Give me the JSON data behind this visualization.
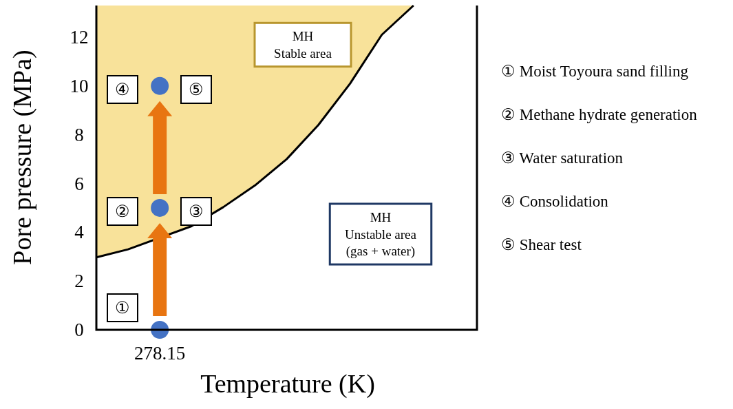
{
  "chart_data": {
    "type": "area",
    "xlabel": "Temperature (K)",
    "ylabel": "Pore pressure (MPa)",
    "categories": [
      null,
      null,
      "278.15",
      null,
      null,
      null,
      null,
      null,
      null,
      null,
      null,
      null,
      null
    ],
    "ylim": [
      0,
      13.3
    ],
    "yticks": [
      0,
      2,
      4,
      6,
      8,
      10,
      12
    ],
    "grid": false,
    "legend": false,
    "series": [
      {
        "type": "line",
        "color": "#000000",
        "values": [
          2.97,
          3.3,
          null,
          4.25,
          5.03,
          5.92,
          7.0,
          8.4,
          10.1,
          12.1,
          13.3,
          null,
          null
        ]
      },
      {
        "type": "scatter",
        "color": "#4472c4",
        "marker": "circle",
        "x": [
          "278.15",
          "278.15",
          "278.15"
        ],
        "values": [
          0,
          5,
          10
        ]
      }
    ],
    "annotations": [
      "MH\nStable area",
      "MH\nUnstable area\n(gas + water)",
      "①",
      "②",
      "③",
      "④",
      "⑤",
      "① Moist Toyoura sand filling",
      "② Methane hydrate generation",
      "③ Water saturation",
      "④ Consolidation",
      "⑤ Shear test"
    ]
  }
}
